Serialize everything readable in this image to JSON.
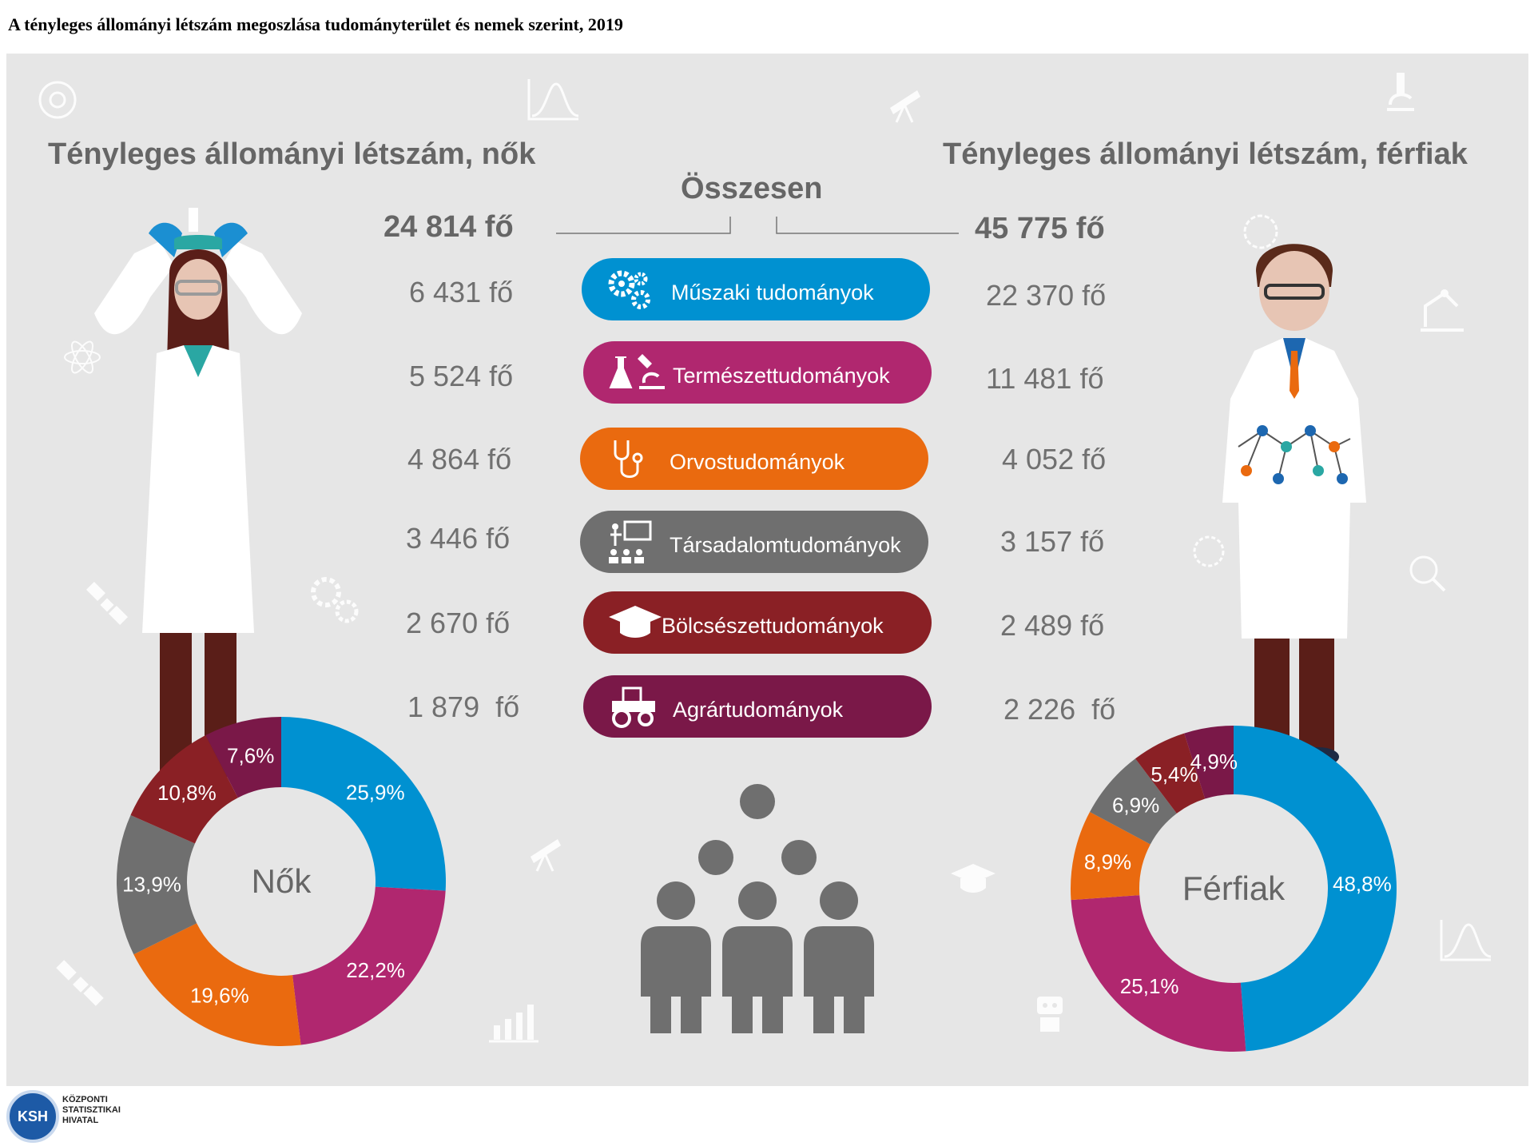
{
  "page_title": "A tényleges állományi létszám megoszlása tudományterület és nemek szerint, 2019",
  "headings": {
    "women": "Tényleges állományi létszám, nők",
    "men": "Tényleges állományi létszám, férfiak",
    "total": "Összesen"
  },
  "totals": {
    "women": "24 814 fő",
    "men": "45 775 fő"
  },
  "colors": {
    "muszaki": "#0091d1",
    "termeszet": "#b0276f",
    "orvos": "#ea6a0f",
    "tarsadalom": "#6f6f6f",
    "bolcsesz": "#8a2025",
    "agrar": "#7a1848"
  },
  "fields": [
    {
      "key": "muszaki",
      "label": "Műszaki tudományok",
      "women": "6 431 fő",
      "men": "22 370 fő",
      "icon": "gears-icon"
    },
    {
      "key": "termeszet",
      "label": "Természettudományok",
      "women": "5 524 fő",
      "men": "11 481 fő",
      "icon": "flask-microscope-icon"
    },
    {
      "key": "orvos",
      "label": "Orvostudományok",
      "women": "4 864 fő",
      "men": "4 052 fő",
      "icon": "stethoscope-icon"
    },
    {
      "key": "tarsadalom",
      "label": "Társadalomtudományok",
      "women": "3 446 fő",
      "men": "3 157 fő",
      "icon": "presenter-audience-icon"
    },
    {
      "key": "bolcsesz",
      "label": "Bölcsészettudományok",
      "women": "2 670 fő",
      "men": "2 489 fő",
      "icon": "graduation-cap-icon"
    },
    {
      "key": "agrar",
      "label": "Agrártudományok",
      "women": "1 879  fő",
      "men": "2 226  fő",
      "icon": "tractor-icon"
    }
  ],
  "chart_data": [
    {
      "type": "pie",
      "donut": true,
      "center_label": "Nők",
      "categories": [
        "Műszaki tudományok",
        "Természettudományok",
        "Orvostudományok",
        "Társadalomtudományok",
        "Bölcsészettudományok",
        "Agrártudományok"
      ],
      "values": [
        25.9,
        22.2,
        19.6,
        13.9,
        10.8,
        7.6
      ],
      "labels": [
        "25,9%",
        "22,2%",
        "19,6%",
        "13,9%",
        "10,8%",
        "7,6%"
      ]
    },
    {
      "type": "pie",
      "donut": true,
      "center_label": "Férfiak",
      "categories": [
        "Műszaki tudományok",
        "Természettudományok",
        "Orvostudományok",
        "Társadalomtudományok",
        "Bölcsészettudományok",
        "Agrártudományok"
      ],
      "values": [
        48.8,
        25.1,
        8.9,
        6.9,
        5.4,
        4.9
      ],
      "labels": [
        "48,8%",
        "25,1%",
        "8,9%",
        "6,9%",
        "5,4%",
        "4,9%"
      ]
    }
  ],
  "logo": {
    "abbr": "KSH",
    "lines": [
      "KÖZPONTI",
      "STATISZTIKAI",
      "HIVATAL"
    ]
  }
}
